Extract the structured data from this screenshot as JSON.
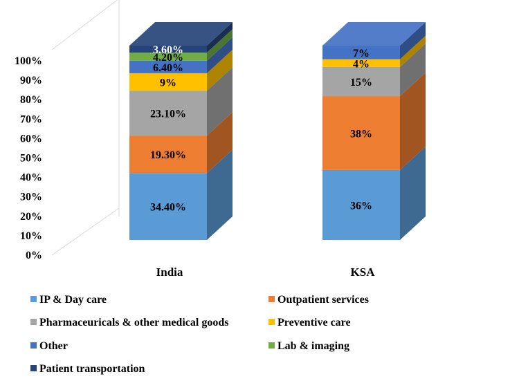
{
  "chart_data": {
    "type": "bar",
    "stacked": true,
    "three_d": true,
    "categories": [
      "India",
      "KSA"
    ],
    "yticks": [
      "0%",
      "10%",
      "20%",
      "30%",
      "40%",
      "50%",
      "60%",
      "70%",
      "80%",
      "90%",
      "100%"
    ],
    "ylim": [
      0,
      100
    ],
    "series": [
      {
        "name": "IP & Day care",
        "color": "#5b9bd5",
        "values": [
          34.4,
          36
        ],
        "labels": [
          "34.40%",
          "36%"
        ]
      },
      {
        "name": "Outpatient services",
        "color": "#ed7d31",
        "values": [
          19.3,
          38
        ],
        "labels": [
          "19.30%",
          "38%"
        ]
      },
      {
        "name": "Pharmaceuricals & other medical goods",
        "color": "#a5a5a5",
        "values": [
          23.1,
          15
        ],
        "labels": [
          "23.10%",
          "15%"
        ]
      },
      {
        "name": "Preventive care",
        "color": "#ffc000",
        "values": [
          9,
          4
        ],
        "labels": [
          "9%",
          "4%"
        ]
      },
      {
        "name": "Other",
        "color": "#4472c4",
        "values": [
          6.4,
          7
        ],
        "labels": [
          "6.40%",
          "7%"
        ]
      },
      {
        "name": "Lab & imaging",
        "color": "#70ad47",
        "values": [
          4.2,
          0
        ],
        "labels": [
          "4.20%",
          ""
        ]
      },
      {
        "name": "Patient transportation",
        "color": "#264478",
        "values": [
          3.6,
          0
        ],
        "labels": [
          "3.60%",
          ""
        ]
      }
    ],
    "legend_position": "bottom",
    "grid": false
  }
}
